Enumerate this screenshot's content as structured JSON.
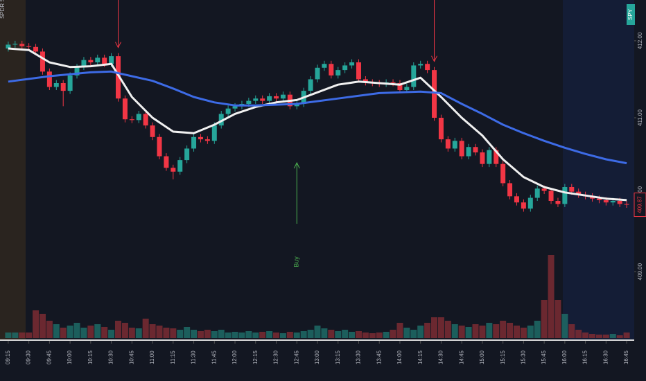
{
  "chart_data": {
    "type": "candlestick",
    "title": "SPDR S&P 500 ETF TRUST, 5, Arca",
    "symbol": "SPY",
    "up_color": "#26a69a",
    "down_color": "#f23645",
    "ylim": [
      408.12,
      412.53
    ],
    "yticks": [
      {
        "value": 409,
        "label": "409.00"
      },
      {
        "value": 410,
        "label": "410.00"
      },
      {
        "value": 411,
        "label": "411.00"
      },
      {
        "value": 412,
        "label": "412.00"
      }
    ],
    "xlim": [
      -1.2,
      91.1
    ],
    "xticks": [
      {
        "value": 0,
        "label": "09:15"
      },
      {
        "value": 3,
        "label": "09:30"
      },
      {
        "value": 6,
        "label": "09:45"
      },
      {
        "value": 9,
        "label": "10:00"
      },
      {
        "value": 12,
        "label": "10:15"
      },
      {
        "value": 15,
        "label": "10:30"
      },
      {
        "value": 18,
        "label": "10:45"
      },
      {
        "value": 21,
        "label": "11:00"
      },
      {
        "value": 24,
        "label": "11:15"
      },
      {
        "value": 27,
        "label": "11:30"
      },
      {
        "value": 30,
        "label": "11:45"
      },
      {
        "value": 33,
        "label": "12:00"
      },
      {
        "value": 36,
        "label": "12:15"
      },
      {
        "value": 39,
        "label": "12:30"
      },
      {
        "value": 42,
        "label": "12:45"
      },
      {
        "value": 45,
        "label": "13:00"
      },
      {
        "value": 48,
        "label": "13:15"
      },
      {
        "value": 51,
        "label": "13:30"
      },
      {
        "value": 54,
        "label": "13:45"
      },
      {
        "value": 57,
        "label": "14:00"
      },
      {
        "value": 60,
        "label": "14:15"
      },
      {
        "value": 63,
        "label": "14:30"
      },
      {
        "value": 66,
        "label": "14:45"
      },
      {
        "value": 69,
        "label": "15:00"
      },
      {
        "value": 72,
        "label": "15:15"
      },
      {
        "value": 75,
        "label": "15:30"
      },
      {
        "value": 78,
        "label": "15:45"
      },
      {
        "value": 81,
        "label": "16:00"
      },
      {
        "value": 84,
        "label": "16:15"
      },
      {
        "value": 87,
        "label": "16:30"
      },
      {
        "value": 90,
        "label": "16:45"
      }
    ],
    "open": [
      411.9,
      411.95,
      411.96,
      411.93,
      411.92,
      411.86,
      411.6,
      411.4,
      411.45,
      411.35,
      411.55,
      411.66,
      411.75,
      411.72,
      411.78,
      411.7,
      411.8,
      411.25,
      410.98,
      410.97,
      411.05,
      410.9,
      410.75,
      410.5,
      410.35,
      410.3,
      410.45,
      410.6,
      410.75,
      410.72,
      410.7,
      410.9,
      411.05,
      411.12,
      411.15,
      411.18,
      411.22,
      411.25,
      411.22,
      411.28,
      411.25,
      411.3,
      411.15,
      411.18,
      411.35,
      411.5,
      411.65,
      411.7,
      411.55,
      411.62,
      411.68,
      411.72,
      411.5,
      411.46,
      411.45,
      411.44,
      411.46,
      411.45,
      411.36,
      411.4,
      411.68,
      411.7,
      411.62,
      411.0,
      410.72,
      410.6,
      410.7,
      410.5,
      410.62,
      410.55,
      410.4,
      410.58,
      410.4,
      410.15,
      409.98,
      409.9,
      409.82,
      409.96,
      410.08,
      410.05,
      409.92,
      409.88,
      410.1,
      410.04,
      410.0,
      409.98,
      409.95,
      409.93,
      409.9,
      409.92,
      409.88
    ],
    "high": [
      411.99,
      412.0,
      412.0,
      411.97,
      411.96,
      411.9,
      411.64,
      411.49,
      411.49,
      411.59,
      411.7,
      411.79,
      411.79,
      411.82,
      411.82,
      411.84,
      411.84,
      411.29,
      411.02,
      411.09,
      411.09,
      410.94,
      410.79,
      410.54,
      410.39,
      410.49,
      410.64,
      410.79,
      410.79,
      410.76,
      410.94,
      411.09,
      411.16,
      411.19,
      411.22,
      411.26,
      411.29,
      411.29,
      411.32,
      411.32,
      411.34,
      411.34,
      411.22,
      411.39,
      411.54,
      411.69,
      411.74,
      411.74,
      411.66,
      411.72,
      411.76,
      411.76,
      411.54,
      411.5,
      411.49,
      411.5,
      411.5,
      411.49,
      411.44,
      411.72,
      411.74,
      411.74,
      411.66,
      411.04,
      410.76,
      410.74,
      410.74,
      410.66,
      410.66,
      410.59,
      410.62,
      410.62,
      410.44,
      410.19,
      410.02,
      409.94,
      410.0,
      410.12,
      410.12,
      410.09,
      409.96,
      410.14,
      410.14,
      410.08,
      410.04,
      410.02,
      409.99,
      409.97,
      409.96,
      409.96,
      409.92
    ],
    "low": [
      411.86,
      411.91,
      411.89,
      411.88,
      411.82,
      411.56,
      411.36,
      411.36,
      411.15,
      411.31,
      411.51,
      411.62,
      411.68,
      411.68,
      411.66,
      411.66,
      411.21,
      410.94,
      410.93,
      410.93,
      410.86,
      410.71,
      410.46,
      410.31,
      410.2,
      410.26,
      410.41,
      410.56,
      410.68,
      410.66,
      410.66,
      410.86,
      411.01,
      411.08,
      411.11,
      411.14,
      411.18,
      411.18,
      411.18,
      411.21,
      411.21,
      411.11,
      411.11,
      411.14,
      411.31,
      411.46,
      411.61,
      411.51,
      411.51,
      411.58,
      411.64,
      411.46,
      411.42,
      411.41,
      411.4,
      411.4,
      411.41,
      411.32,
      411.32,
      411.36,
      411.64,
      411.58,
      410.96,
      410.68,
      410.56,
      410.56,
      410.46,
      410.46,
      410.51,
      410.36,
      410.36,
      410.36,
      410.11,
      409.94,
      409.86,
      409.78,
      409.78,
      409.92,
      410.01,
      409.88,
      409.84,
      409.84,
      410.0,
      409.96,
      409.94,
      409.91,
      409.89,
      409.86,
      409.86,
      409.84,
      409.83
    ],
    "close": [
      411.95,
      411.96,
      411.93,
      411.92,
      411.86,
      411.6,
      411.4,
      411.45,
      411.35,
      411.55,
      411.66,
      411.75,
      411.72,
      411.78,
      411.7,
      411.8,
      411.25,
      410.98,
      410.97,
      411.05,
      410.9,
      410.75,
      410.5,
      410.35,
      410.3,
      410.45,
      410.6,
      410.75,
      410.72,
      410.7,
      410.9,
      411.05,
      411.12,
      411.15,
      411.18,
      411.22,
      411.25,
      411.22,
      411.28,
      411.25,
      411.3,
      411.15,
      411.18,
      411.35,
      411.5,
      411.65,
      411.7,
      411.55,
      411.62,
      411.68,
      411.72,
      411.5,
      411.46,
      411.45,
      411.44,
      411.46,
      411.45,
      411.36,
      411.4,
      411.68,
      411.7,
      411.62,
      411.0,
      410.72,
      410.6,
      410.7,
      410.5,
      410.62,
      410.55,
      410.4,
      410.58,
      410.4,
      410.15,
      409.98,
      409.9,
      409.82,
      409.96,
      410.08,
      410.05,
      409.92,
      409.88,
      410.1,
      410.04,
      410.0,
      409.98,
      409.95,
      409.93,
      409.9,
      409.92,
      409.88,
      409.87
    ],
    "volume": [
      8,
      8,
      8,
      8,
      40,
      35,
      25,
      20,
      15,
      18,
      22,
      15,
      18,
      20,
      16,
      12,
      25,
      22,
      15,
      14,
      28,
      20,
      18,
      15,
      14,
      12,
      16,
      12,
      10,
      12,
      10,
      12,
      8,
      9,
      8,
      10,
      8,
      9,
      10,
      8,
      7,
      9,
      8,
      10,
      12,
      18,
      14,
      12,
      10,
      12,
      9,
      10,
      8,
      7,
      8,
      9,
      12,
      22,
      15,
      12,
      18,
      22,
      30,
      30,
      25,
      20,
      18,
      16,
      20,
      18,
      22,
      20,
      25,
      22,
      18,
      15,
      18,
      25,
      55,
      120,
      55,
      35,
      20,
      12,
      8,
      6,
      5,
      5,
      6,
      4,
      8
    ],
    "lines": [
      {
        "color": "#f0f0f0",
        "x": [
          0,
          3,
          6,
          9,
          12,
          15,
          18,
          21,
          24,
          27,
          30,
          33,
          36,
          39,
          42,
          45,
          48,
          51,
          54,
          57,
          60,
          63,
          66,
          69,
          72,
          75,
          78,
          81,
          84,
          87,
          90
        ],
        "values": [
          411.9,
          411.88,
          411.72,
          411.66,
          411.67,
          411.7,
          411.27,
          411.0,
          410.82,
          410.8,
          410.91,
          411.05,
          411.14,
          411.2,
          411.23,
          411.33,
          411.43,
          411.47,
          411.45,
          411.43,
          411.52,
          411.27,
          411.0,
          410.77,
          410.46,
          410.23,
          410.1,
          410.03,
          409.99,
          409.95,
          409.93
        ]
      },
      {
        "color": "#3d6be6",
        "x": [
          0,
          6,
          12,
          15,
          18,
          21,
          24,
          27,
          30,
          33,
          36,
          42,
          48,
          54,
          60,
          63,
          66,
          69,
          72,
          75,
          78,
          81,
          84,
          87,
          90
        ],
        "values": [
          411.47,
          411.54,
          411.59,
          411.6,
          411.54,
          411.48,
          411.38,
          411.27,
          411.2,
          411.16,
          411.16,
          411.18,
          411.25,
          411.32,
          411.34,
          411.32,
          411.18,
          411.05,
          410.91,
          410.8,
          410.7,
          410.61,
          410.53,
          410.46,
          410.41
        ]
      }
    ],
    "sell_signals": [
      16,
      62
    ],
    "buy_signals": [
      42
    ],
    "buy_label": "Buy",
    "price_tag": 409.87
  }
}
